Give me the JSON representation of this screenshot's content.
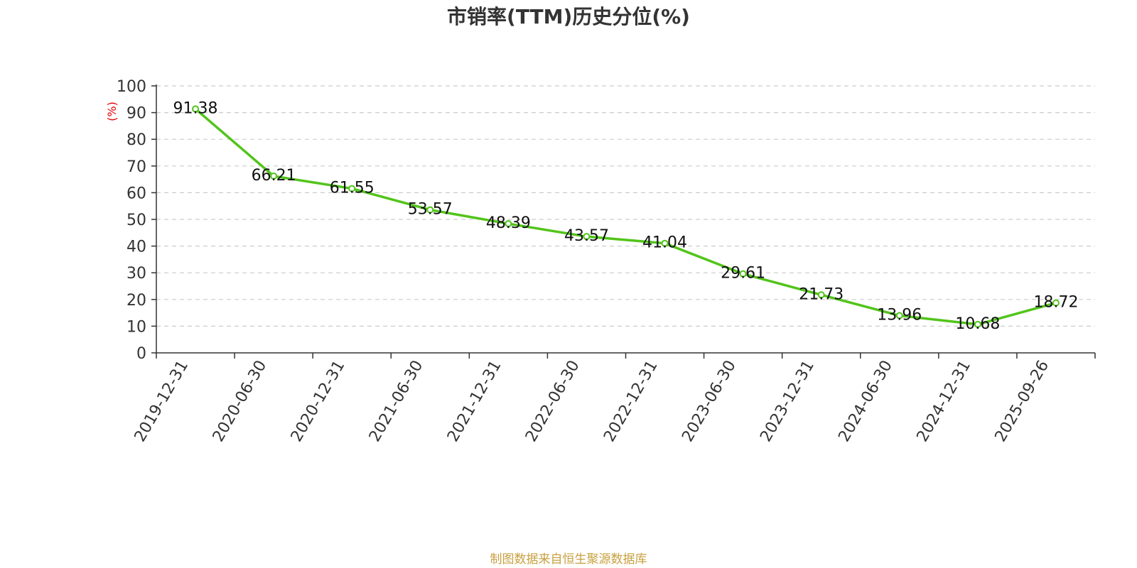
{
  "chart_data": {
    "type": "line",
    "title": "市销率(TTM)历史分位(%)",
    "ylabel": "(%)",
    "xlabel": "",
    "categories": [
      "2019-12-31",
      "2020-06-30",
      "2020-12-31",
      "2021-06-30",
      "2021-12-31",
      "2022-06-30",
      "2022-12-31",
      "2023-06-30",
      "2023-12-31",
      "2024-06-30",
      "2024-12-31",
      "2025-09-26"
    ],
    "values": [
      91.38,
      66.21,
      61.55,
      53.57,
      48.39,
      43.57,
      41.04,
      29.61,
      21.73,
      13.96,
      10.68,
      18.72
    ],
    "value_labels": [
      "91.38",
      "66.21",
      "61.55",
      "53.57",
      "48.39",
      "43.57",
      "41.04",
      "29.61",
      "21.73",
      "13.96",
      "10.68",
      "18.72"
    ],
    "ylim": [
      0,
      100
    ],
    "yticks": [
      0,
      10,
      20,
      30,
      40,
      50,
      60,
      70,
      80,
      90,
      100
    ],
    "grid": true,
    "grid_style": "dashed",
    "legend": "none",
    "colors": {
      "line": "#52c41a",
      "marker_fill": "#ffffff",
      "grid": "#cccccc",
      "axis": "#333333",
      "unit_label": "#e60000",
      "footer": "#c8a040"
    }
  },
  "footer": {
    "source_text": "制图数据来自恒生聚源数据库"
  }
}
